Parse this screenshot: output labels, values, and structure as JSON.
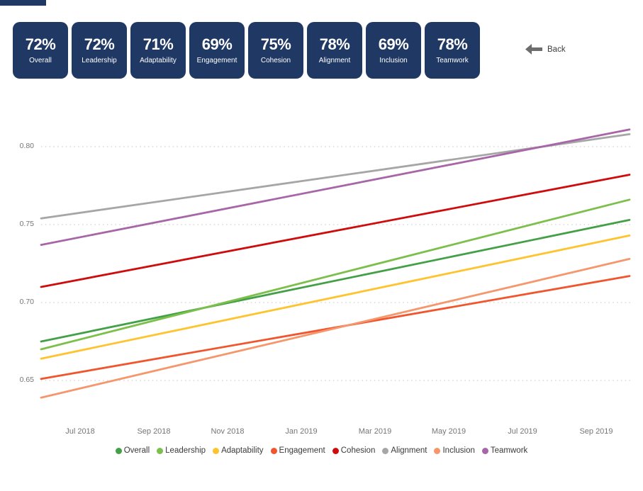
{
  "theme": {
    "card_navy": "#1f3864",
    "page_bg": "#ffffff",
    "grid_color": "#d2d2d2",
    "axis_text_color": "#767676",
    "legend_text_color": "#3b3a39",
    "back_arrow_color": "#6d6d6d"
  },
  "cards": [
    {
      "value": "72%",
      "label": "Overall"
    },
    {
      "value": "72%",
      "label": "Leadership"
    },
    {
      "value": "71%",
      "label": "Adaptability"
    },
    {
      "value": "69%",
      "label": "Engagement"
    },
    {
      "value": "75%",
      "label": "Cohesion"
    },
    {
      "value": "78%",
      "label": "Alignment"
    },
    {
      "value": "69%",
      "label": "Inclusion"
    },
    {
      "value": "78%",
      "label": "Teamwork"
    }
  ],
  "back": {
    "label": "Back",
    "icon": "left-arrow-icon"
  },
  "chart_data": {
    "type": "line",
    "title": "",
    "xlabel": "",
    "ylabel": "",
    "grid": "dotted horizontal gridlines",
    "legend_position": "bottom",
    "x_ticks": [
      "Jul 2018",
      "Sep 2018",
      "Nov 2018",
      "Jan 2019",
      "Mar 2019",
      "May 2019",
      "Jul 2019",
      "Sep 2019"
    ],
    "y_ticks": [
      0.65,
      0.7,
      0.75,
      0.8
    ],
    "y_tick_labels": [
      "0.65",
      "0.70",
      "0.75",
      "0.80"
    ],
    "ylim": [
      0.625,
      0.82
    ],
    "series": [
      {
        "name": "Overall",
        "color": "#43a047",
        "trend": [
          0.675,
          0.753
        ]
      },
      {
        "name": "Leadership",
        "color": "#7cbf4b",
        "trend": [
          0.67,
          0.766
        ]
      },
      {
        "name": "Adaptability",
        "color": "#fec32d",
        "trend": [
          0.664,
          0.743
        ]
      },
      {
        "name": "Engagement",
        "color": "#f0552d",
        "trend": [
          0.651,
          0.717
        ]
      },
      {
        "name": "Cohesion",
        "color": "#cf0c0c",
        "trend": [
          0.71,
          0.782
        ]
      },
      {
        "name": "Alignment",
        "color": "#a6a6a6",
        "trend": [
          0.754,
          0.808
        ]
      },
      {
        "name": "Inclusion",
        "color": "#f5966c",
        "trend": [
          0.639,
          0.728
        ]
      },
      {
        "name": "Teamwork",
        "color": "#a766a8",
        "trend": [
          0.737,
          0.811
        ]
      }
    ]
  }
}
